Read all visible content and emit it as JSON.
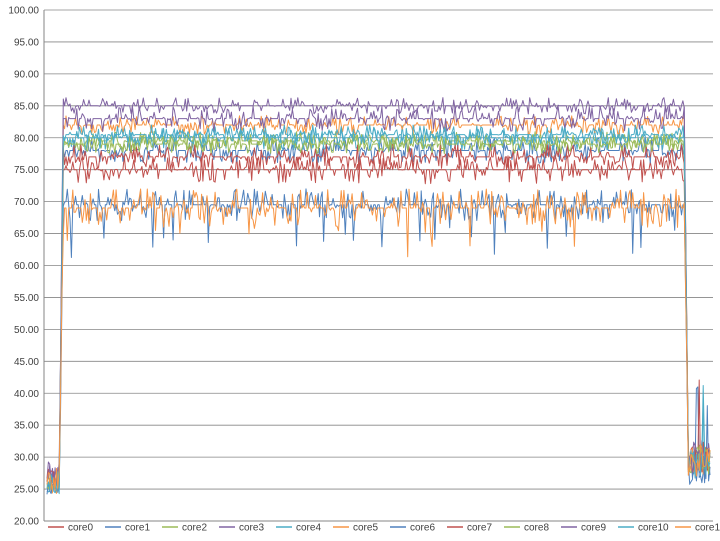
{
  "chart_data": {
    "type": "line",
    "title": "",
    "xlabel": "",
    "ylabel": "",
    "ylim": [
      20,
      100
    ],
    "y_ticks": [
      "20.00",
      "25.00",
      "30.00",
      "35.00",
      "40.00",
      "45.00",
      "50.00",
      "55.00",
      "60.00",
      "65.00",
      "70.00",
      "75.00",
      "80.00",
      "85.00",
      "90.00",
      "95.00",
      "100.00"
    ],
    "grid": "horizontal",
    "legend_position": "bottom",
    "x_count": 490,
    "phases": {
      "ramp_up_end": 10,
      "ramp_down_start": 470
    },
    "series": [
      {
        "name": "core0",
        "color": "#c0504d",
        "idle": 26.5,
        "load": 75,
        "amp": 2.2,
        "seed": 11
      },
      {
        "name": "core1",
        "color": "#4f81bd",
        "idle": 25.5,
        "load": 78,
        "amp": 2.0,
        "seed": 23
      },
      {
        "name": "core2",
        "color": "#9bbb59",
        "idle": 27,
        "load": 79.5,
        "amp": 1.5,
        "seed": 37
      },
      {
        "name": "core3",
        "color": "#8064a2",
        "idle": 27.5,
        "load": 85,
        "amp": 1.3,
        "seed": 41
      },
      {
        "name": "core4",
        "color": "#4bacc6",
        "idle": 26,
        "load": 80,
        "amp": 2.0,
        "seed": 53
      },
      {
        "name": "core5",
        "color": "#f79646",
        "idle": 26,
        "load": 82,
        "amp": 1.5,
        "seed": 67
      },
      {
        "name": "core6",
        "color": "#4f81bd",
        "idle": 25,
        "load": 69.5,
        "amp": 2.5,
        "seed": 71
      },
      {
        "name": "core7",
        "color": "#c0504d",
        "idle": 27,
        "load": 77,
        "amp": 2.0,
        "seed": 83
      },
      {
        "name": "core8",
        "color": "#9bbb59",
        "idle": 26.5,
        "load": 79,
        "amp": 1.5,
        "seed": 97
      },
      {
        "name": "core9",
        "color": "#8064a2",
        "idle": 27,
        "load": 83,
        "amp": 2.0,
        "seed": 101
      },
      {
        "name": "core10",
        "color": "#4bacc6",
        "idle": 26,
        "load": 80.5,
        "amp": 1.5,
        "seed": 113
      },
      {
        "name": "core11",
        "color": "#f79646",
        "idle": 26.5,
        "load": 69,
        "amp": 3.0,
        "seed": 127
      }
    ]
  }
}
